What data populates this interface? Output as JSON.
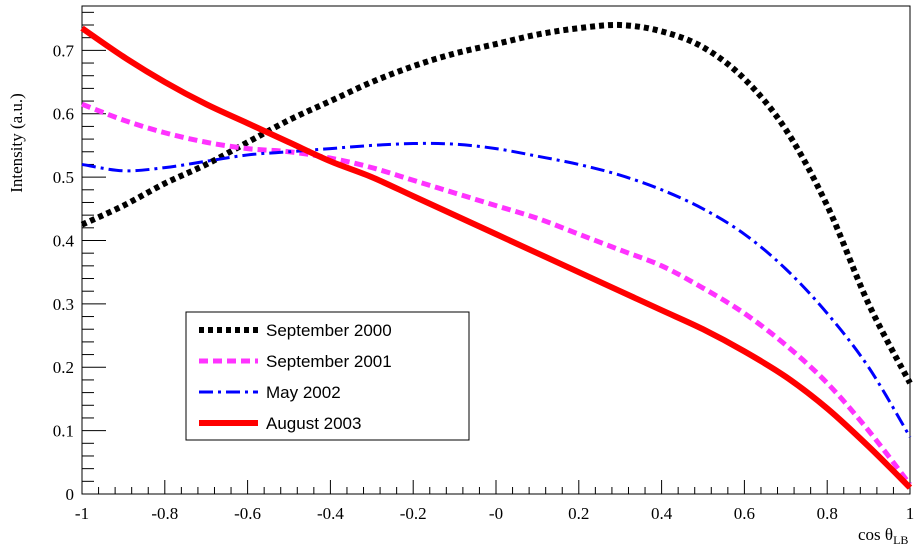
{
  "chart_data": {
    "type": "line",
    "title": "",
    "xlabel": "cos θ",
    "xlabel_subscript": "LB",
    "ylabel": "Intensity (a.u.)",
    "xlim": [
      -1,
      1
    ],
    "ylim": [
      0,
      0.77
    ],
    "grid": false,
    "legend_position": "bottom-left",
    "x_ticks": [
      -1,
      -0.8,
      -0.6,
      -0.4,
      -0.2,
      0,
      0.2,
      0.4,
      0.6,
      0.8,
      1
    ],
    "x_tick_labels": [
      "-1",
      "-0.8",
      "-0.6",
      "-0.4",
      "-0.2",
      "-0",
      "0.2",
      "0.4",
      "0.6",
      "0.8",
      "1"
    ],
    "y_ticks": [
      0,
      0.1,
      0.2,
      0.3,
      0.4,
      0.5,
      0.6,
      0.7
    ],
    "y_tick_labels": [
      "0",
      "0.1",
      "0.2",
      "0.3",
      "0.4",
      "0.5",
      "0.6",
      "0.7"
    ],
    "x": [
      -1,
      -0.9,
      -0.8,
      -0.7,
      -0.6,
      -0.5,
      -0.4,
      -0.3,
      -0.2,
      -0.1,
      0,
      0.1,
      0.2,
      0.3,
      0.4,
      0.5,
      0.6,
      0.7,
      0.8,
      0.9,
      1
    ],
    "series": [
      {
        "name": "September 2000",
        "color": "#000000",
        "style": "dotted",
        "values": [
          0.425,
          0.455,
          0.49,
          0.52,
          0.555,
          0.59,
          0.62,
          0.65,
          0.675,
          0.695,
          0.71,
          0.725,
          0.735,
          0.74,
          0.73,
          0.705,
          0.655,
          0.575,
          0.455,
          0.3,
          0.175
        ]
      },
      {
        "name": "September 2001",
        "color": "#ff33ff",
        "style": "dashed",
        "values": [
          0.615,
          0.59,
          0.57,
          0.555,
          0.545,
          0.54,
          0.53,
          0.515,
          0.495,
          0.475,
          0.455,
          0.435,
          0.41,
          0.385,
          0.36,
          0.325,
          0.285,
          0.235,
          0.175,
          0.1,
          0.015
        ]
      },
      {
        "name": "May 2002",
        "color": "#0000ff",
        "style": "dashdot",
        "values": [
          0.52,
          0.51,
          0.515,
          0.525,
          0.535,
          0.54,
          0.545,
          0.55,
          0.553,
          0.552,
          0.545,
          0.533,
          0.52,
          0.503,
          0.48,
          0.45,
          0.41,
          0.355,
          0.285,
          0.2,
          0.09
        ]
      },
      {
        "name": "August 2003",
        "color": "#ff0000",
        "style": "solid",
        "values": [
          0.735,
          0.69,
          0.65,
          0.615,
          0.585,
          0.555,
          0.525,
          0.5,
          0.47,
          0.44,
          0.41,
          0.38,
          0.35,
          0.32,
          0.29,
          0.26,
          0.225,
          0.185,
          0.135,
          0.075,
          0.01
        ]
      }
    ]
  }
}
